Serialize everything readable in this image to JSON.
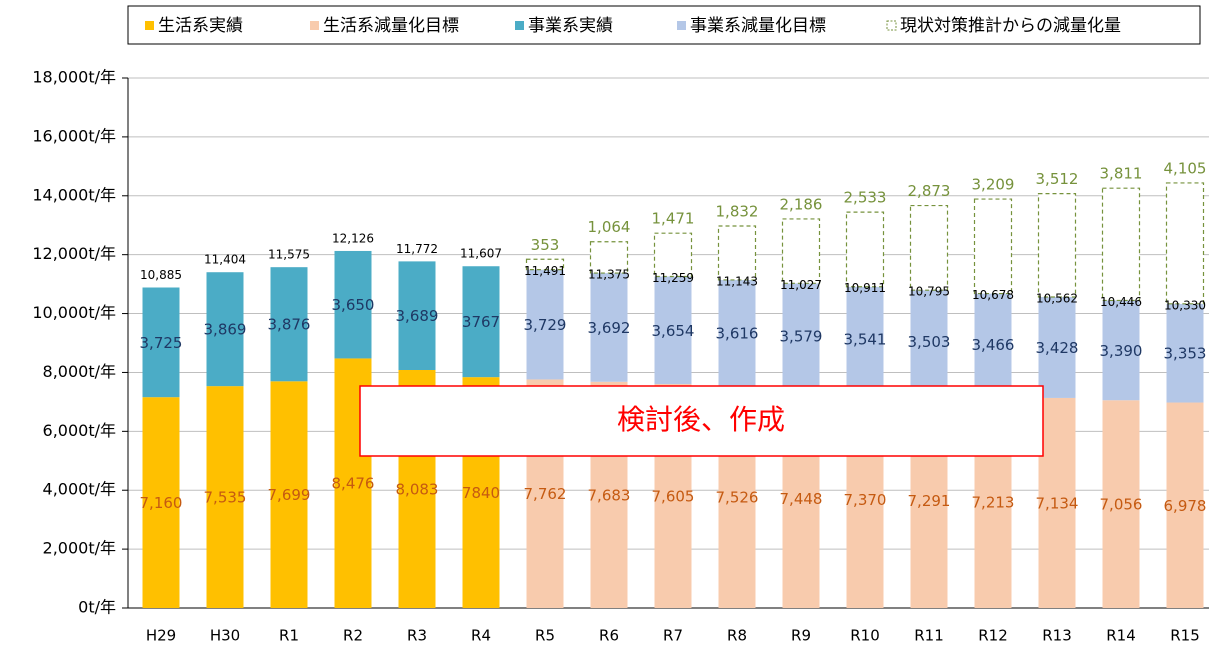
{
  "chart_data": {
    "type": "stacked-bar",
    "categories": [
      "H29",
      "H30",
      "R1",
      "R2",
      "R3",
      "R4",
      "R5",
      "R6",
      "R7",
      "R8",
      "R9",
      "R10",
      "R11",
      "R12",
      "R13",
      "R14",
      "R15"
    ],
    "series": [
      {
        "name": "生活系実績",
        "color": "#FFC000",
        "label_color": "#C55A11",
        "values": [
          7160,
          7535,
          7699,
          8476,
          8083,
          7840,
          null,
          null,
          null,
          null,
          null,
          null,
          null,
          null,
          null,
          null,
          null
        ],
        "value_labels": [
          "7,160",
          "7,535",
          "7,699",
          "8,476",
          "8,083",
          "7840",
          null,
          null,
          null,
          null,
          null,
          null,
          null,
          null,
          null,
          null,
          null
        ]
      },
      {
        "name": "生活系減量化目標",
        "color": "#F8CBAD",
        "label_color": "#C55A11",
        "values": [
          null,
          null,
          null,
          null,
          null,
          null,
          7762,
          7683,
          7605,
          7526,
          7448,
          7370,
          7291,
          7213,
          7134,
          7056,
          6978
        ],
        "value_labels": [
          null,
          null,
          null,
          null,
          null,
          null,
          "7,762",
          "7,683",
          "7,605",
          "7,526",
          "7,448",
          "7,370",
          "7,291",
          "7,213",
          "7,134",
          "7,056",
          "6,978"
        ]
      },
      {
        "name": "事業系実績",
        "color": "#4BACC6",
        "label_color": "#1F3864",
        "values": [
          3725,
          3869,
          3876,
          3650,
          3689,
          3767,
          null,
          null,
          null,
          null,
          null,
          null,
          null,
          null,
          null,
          null,
          null
        ],
        "value_labels": [
          "3,725",
          "3,869",
          "3,876",
          "3,650",
          "3,689",
          "3767",
          null,
          null,
          null,
          null,
          null,
          null,
          null,
          null,
          null,
          null,
          null
        ]
      },
      {
        "name": "事業系減量化目標",
        "color": "#B4C7E7",
        "label_color": "#1F3864",
        "values": [
          null,
          null,
          null,
          null,
          null,
          null,
          3729,
          3692,
          3654,
          3616,
          3579,
          3541,
          3503,
          3466,
          3428,
          3390,
          3353
        ],
        "value_labels": [
          null,
          null,
          null,
          null,
          null,
          null,
          "3,729",
          "3,692",
          "3,654",
          "3,616",
          "3,579",
          "3,541",
          "3,503",
          "3,466",
          "3,428",
          "3,390",
          "3,353"
        ]
      },
      {
        "name": "現状対策推計からの減量化量",
        "color": "#76923C",
        "label_color": "#76923C",
        "outline": "dashed",
        "values": [
          null,
          null,
          null,
          null,
          null,
          null,
          353,
          1064,
          1471,
          1832,
          2186,
          2533,
          2873,
          3209,
          3512,
          3811,
          4105
        ],
        "value_labels": [
          null,
          null,
          null,
          null,
          null,
          null,
          "353",
          "1,064",
          "1,471",
          "1,832",
          "2,186",
          "2,533",
          "2,873",
          "3,209",
          "3,512",
          "3,811",
          "4,105"
        ]
      }
    ],
    "totals": {
      "values": [
        10885,
        11404,
        11575,
        12126,
        11772,
        11607,
        11491,
        11375,
        11259,
        11143,
        11027,
        10911,
        10795,
        10678,
        10562,
        10446,
        10330
      ],
      "value_labels": [
        "10,885",
        "11,404",
        "11,575",
        "12,126",
        "11,772",
        "11,607",
        "11,491",
        "11,375",
        "11,259",
        "11,143",
        "11,027",
        "10,911",
        "10,795",
        "10,678",
        "10,562",
        "10,446",
        "10,330"
      ]
    },
    "ylim": [
      0,
      18000
    ],
    "yticks": [
      {
        "value": 0,
        "label": "0t/年"
      },
      {
        "value": 2000,
        "label": "2,000t/年"
      },
      {
        "value": 4000,
        "label": "4,000t/年"
      },
      {
        "value": 6000,
        "label": "6,000t/年"
      },
      {
        "value": 8000,
        "label": "8,000t/年"
      },
      {
        "value": 10000,
        "label": "10,000t/年"
      },
      {
        "value": 12000,
        "label": "12,000t/年"
      },
      {
        "value": 14000,
        "label": "14,000t/年"
      },
      {
        "value": 16000,
        "label": "16,000t/年"
      },
      {
        "value": 18000,
        "label": "18,000t/年"
      }
    ],
    "grid": true,
    "annotation": "検討後、作成"
  }
}
